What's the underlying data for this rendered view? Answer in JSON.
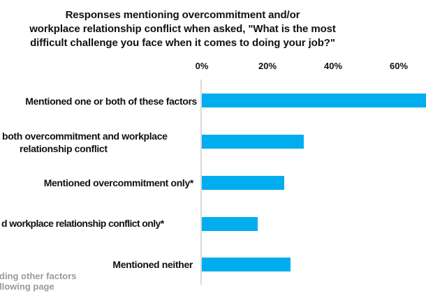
{
  "title": {
    "lines": [
      "Responses mentioning overcommitment and/or",
      "workplace relationship conflict when asked, \"What is the most",
      "difficult challenge you face when it comes to doing your job?\""
    ]
  },
  "axis": {
    "ticks": [
      "0%",
      "20%",
      "40%",
      "60%"
    ]
  },
  "labels": {
    "one_or_both": "Mentioned one or both of these factors",
    "both_line1": "both overcommitment and workplace",
    "both_line2": "relationship conflict",
    "overcommitment_only": "Mentioned overcommitment only*",
    "workplace_only": "d workplace relationship conflict only*",
    "neither": "Mentioned neither"
  },
  "footnote": {
    "lines": [
      "ding other factors",
      "llowing page"
    ]
  },
  "colors": {
    "bar": "#00aeef",
    "axis_line": "#d9d9d9",
    "text": "#111111",
    "footnote": "#9a9a9a"
  },
  "chart_data": {
    "type": "bar",
    "orientation": "horizontal",
    "title": "Responses mentioning overcommitment and/or workplace relationship conflict when asked, \"What is the most difficult challenge you face when it comes to doing your job?\"",
    "categories": [
      "Mentioned one or both of these factors",
      "both overcommitment and workplace relationship conflict",
      "Mentioned overcommitment only*",
      "d workplace relationship conflict only*",
      "Mentioned neither"
    ],
    "values": [
      73,
      31,
      25,
      17,
      27
    ],
    "unit": "%",
    "x_ticks": [
      "0%",
      "20%",
      "40%",
      "60%"
    ],
    "x_tick_values": [
      0,
      20,
      40,
      60
    ],
    "xlim_visible": [
      0,
      68
    ],
    "grid": false,
    "legend": false,
    "bar_color": "#00aeef",
    "notes": "Screenshot is cropped: category labels and footnote are clipped at the left edge; the first bar (73%) runs past the right edge, visible to about 68%."
  }
}
